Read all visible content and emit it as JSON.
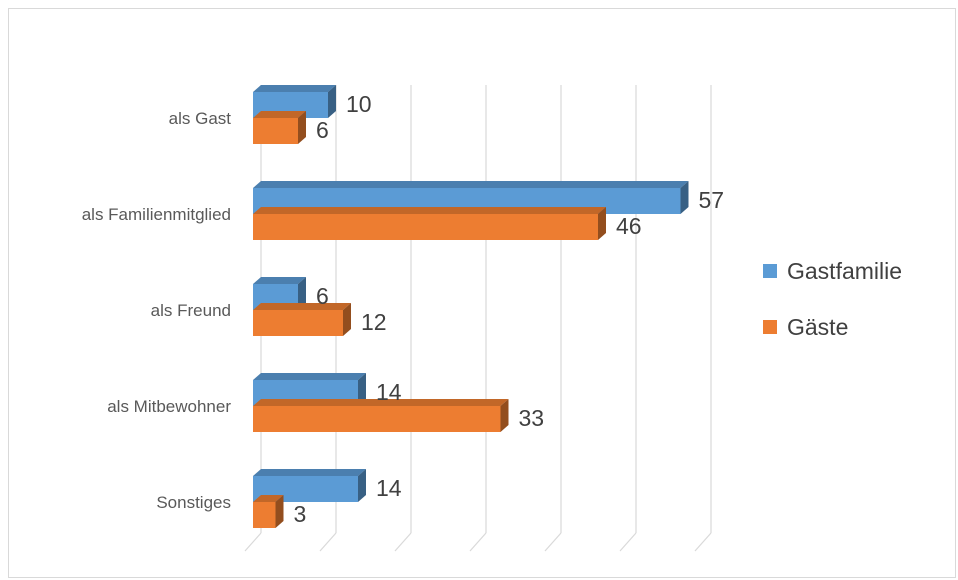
{
  "chart_data": {
    "type": "bar",
    "orientation": "horizontal",
    "style": "3d",
    "categories": [
      "als Gast",
      "als Familienmitglied",
      "als Freund",
      "als Mitbewohner",
      "Sonstiges"
    ],
    "series": [
      {
        "name": "Gastfamilie",
        "values": [
          10,
          57,
          6,
          14,
          14
        ],
        "color": "#5b9bd5"
      },
      {
        "name": "Gäste",
        "values": [
          6,
          46,
          12,
          33,
          3
        ],
        "color": "#ed7d31"
      }
    ],
    "xlim": [
      0,
      60
    ],
    "grid": true,
    "legend_position": "right",
    "data_labels": true
  }
}
